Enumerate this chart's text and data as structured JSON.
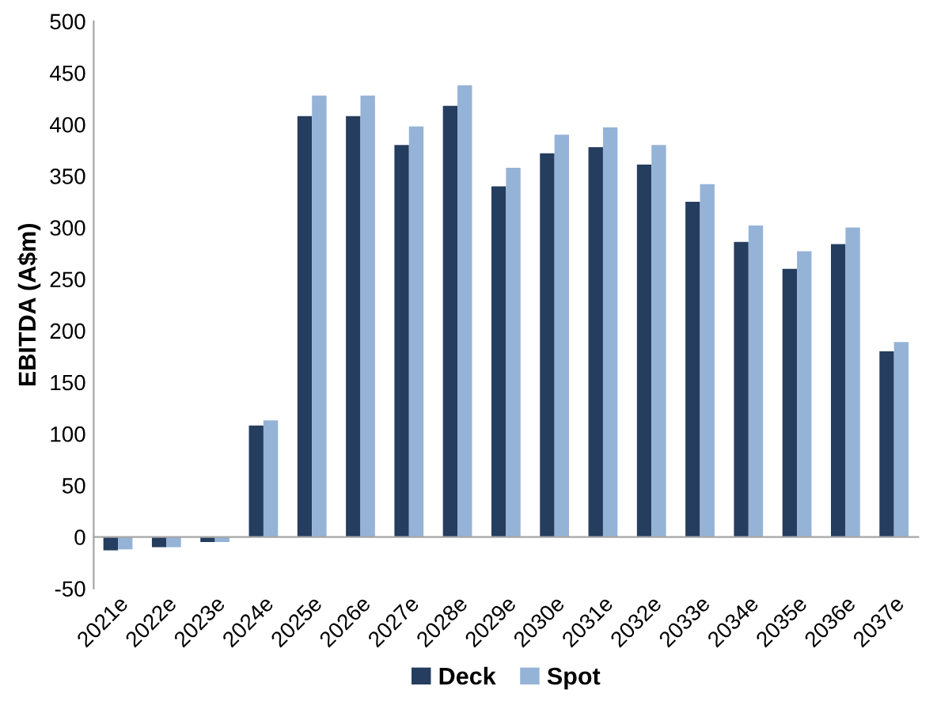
{
  "chart_data": {
    "type": "bar",
    "ylabel": "EBITDA (A$m)",
    "categories": [
      "2021e",
      "2022e",
      "2023e",
      "2024e",
      "2025e",
      "2026e",
      "2027e",
      "2028e",
      "2029e",
      "2030e",
      "2031e",
      "2032e",
      "2033e",
      "2034e",
      "2035e",
      "2036e",
      "2037e"
    ],
    "series": [
      {
        "name": "Deck",
        "color": "#253d5e",
        "values": [
          -13,
          -10,
          -5,
          108,
          408,
          408,
          380,
          418,
          340,
          372,
          378,
          361,
          325,
          286,
          260,
          284,
          180
        ]
      },
      {
        "name": "Spot",
        "color": "#95b3d7",
        "values": [
          -12,
          -10,
          -5,
          113,
          428,
          428,
          398,
          438,
          358,
          390,
          397,
          380,
          342,
          302,
          277,
          300,
          189
        ]
      }
    ],
    "ylim": [
      -50,
      500
    ],
    "yticks": [
      -50,
      0,
      50,
      100,
      150,
      200,
      250,
      300,
      350,
      400,
      450,
      500
    ],
    "legend": "bottom"
  }
}
